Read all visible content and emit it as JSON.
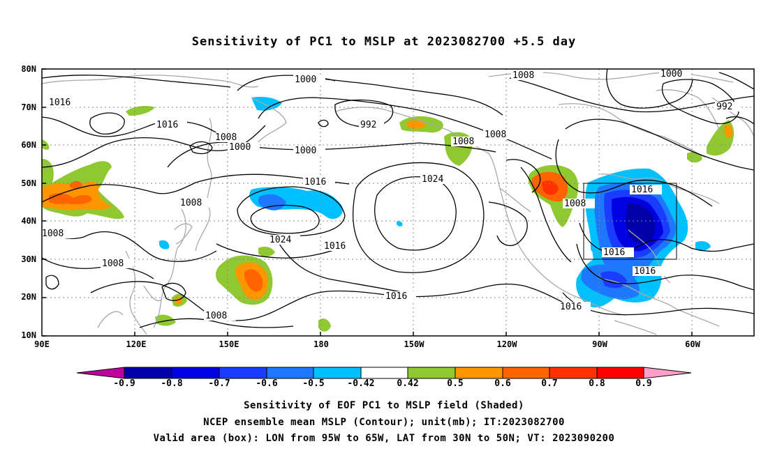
{
  "title": "Sensitivity of PC1 to MSLP at 2023082700 +5.5 day",
  "lat_labels": [
    "80N",
    "70N",
    "60N",
    "50N",
    "40N",
    "30N",
    "20N",
    "10N"
  ],
  "lon_labels": [
    "90E",
    "120E",
    "150E",
    "180",
    "150W",
    "120W",
    "90W",
    "60W"
  ],
  "colorbar": {
    "labels": [
      "-0.9",
      "-0.8",
      "-0.7",
      "-0.6",
      "-0.5",
      "-0.42",
      "0.42",
      "0.5",
      "0.6",
      "0.7",
      "0.8",
      "0.9"
    ],
    "colors": [
      "#c0009c",
      "#0000a8",
      "#0000e0",
      "#1a3cff",
      "#1e78ff",
      "#00c0ff",
      "#ffffff",
      "#90c832",
      "#ff9600",
      "#ff6400",
      "#ff3200",
      "#ff0000",
      "#ff9ec8"
    ]
  },
  "contour_labels": [
    {
      "text": "1016"
    },
    {
      "text": "1016"
    },
    {
      "text": "1008"
    },
    {
      "text": "1000"
    },
    {
      "text": "1000"
    },
    {
      "text": "992"
    },
    {
      "text": "1000"
    },
    {
      "text": "1008"
    },
    {
      "text": "1008"
    },
    {
      "text": "1000"
    },
    {
      "text": "992"
    },
    {
      "text": "1016"
    },
    {
      "text": "1024"
    },
    {
      "text": "1008"
    },
    {
      "text": "1008"
    },
    {
      "text": "1024"
    },
    {
      "text": "1016"
    },
    {
      "text": "1008"
    },
    {
      "text": "1008"
    },
    {
      "text": "1016"
    },
    {
      "text": "1016"
    },
    {
      "text": "1016"
    },
    {
      "text": "1016"
    },
    {
      "text": "1016"
    }
  ],
  "valid_box": {
    "lon_w": "95W",
    "lon_e": "65W",
    "lat_s": "30N",
    "lat_n": "50N"
  },
  "captions": [
    "Sensitivity of EOF PC1 to MSLP field (Shaded)",
    "NCEP ensemble mean MSLP (Contour); unit(mb); IT:2023082700",
    "Valid area (box): LON from 95W to 65W, LAT from 30N to 50N; VT: 2023090200"
  ]
}
